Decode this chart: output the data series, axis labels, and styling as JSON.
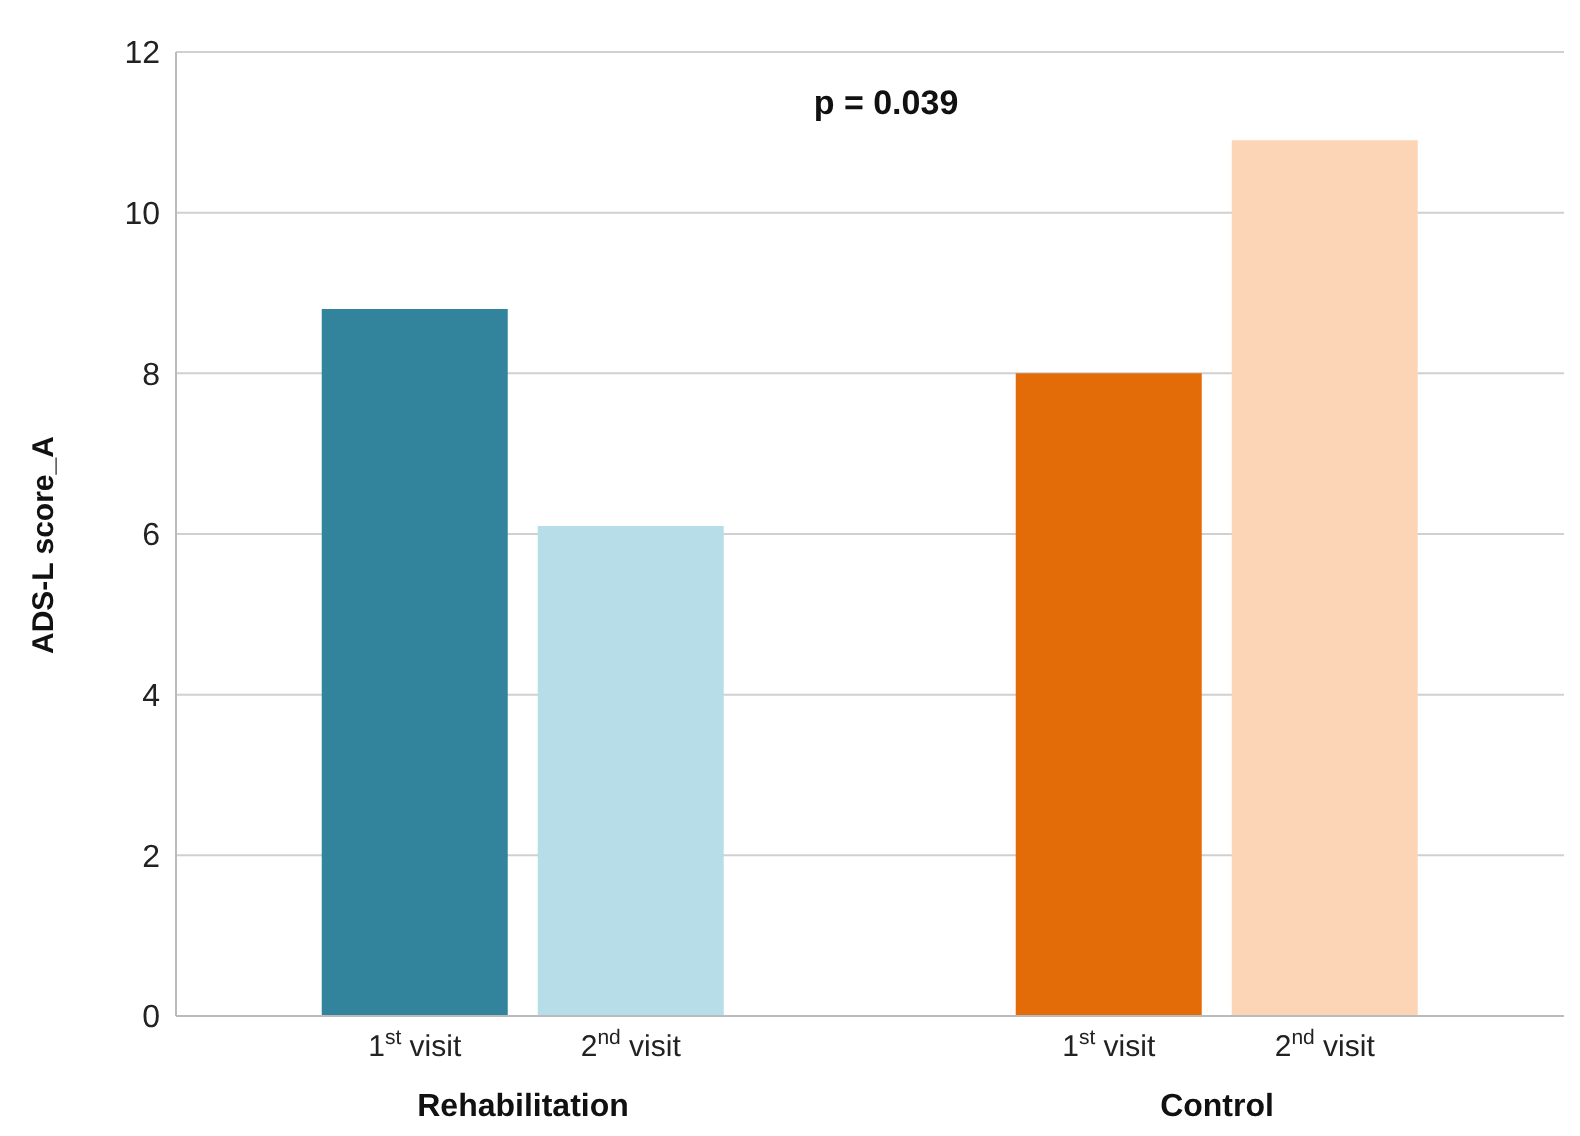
{
  "chart_data": {
    "type": "bar",
    "ylabel": "ADS-L score_A",
    "categories": [
      "Rehabilitation",
      "Control"
    ],
    "series": [
      {
        "name": "1$^{st}$ visit",
        "colors": [
          "#31849b",
          "#e36c09"
        ],
        "values": [
          8.8,
          8.0
        ]
      },
      {
        "name": "2$^{nd}$ visit",
        "colors": [
          "#b7dde8",
          "#fbd5b5"
        ],
        "values": [
          6.1,
          10.9
        ]
      }
    ],
    "ylim": [
      0,
      12
    ],
    "yticks": [
      0,
      2,
      4,
      6,
      8,
      10,
      12
    ],
    "grid": "y",
    "annotations": [
      "p = 0.039"
    ]
  }
}
